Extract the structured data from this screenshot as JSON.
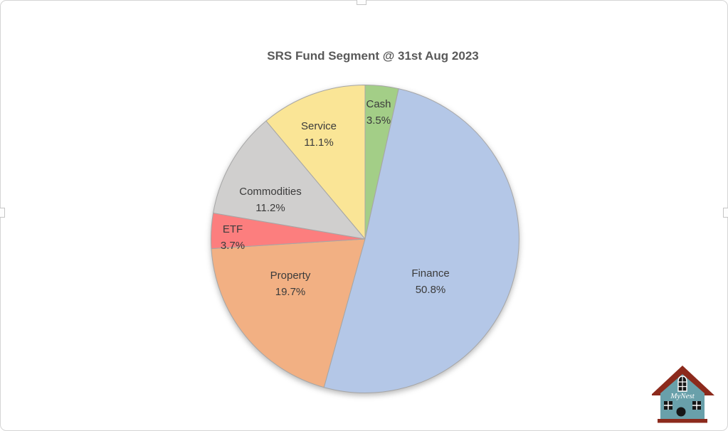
{
  "chart_data": {
    "type": "pie",
    "title": "SRS Fund Segment @ 31st Aug 2023",
    "direction": "clockwise",
    "start_angle_deg": 0,
    "legend": "none",
    "labels_inside": true,
    "stroke_color": "#a6a6a6",
    "slices": [
      {
        "label": "Cash",
        "value_pct": 3.5,
        "display": "3.5%",
        "color": "#a3ce87"
      },
      {
        "label": "Finance",
        "value_pct": 50.8,
        "display": "50.8%",
        "color": "#b4c7e7"
      },
      {
        "label": "Property",
        "value_pct": 19.7,
        "display": "19.7%",
        "color": "#f2b083"
      },
      {
        "label": "ETF",
        "value_pct": 3.7,
        "display": "3.7%",
        "color": "#fc7e7e"
      },
      {
        "label": "Commodities",
        "value_pct": 11.2,
        "display": "11.2%",
        "color": "#d0cfce"
      },
      {
        "label": "Service",
        "value_pct": 11.1,
        "display": "11.1%",
        "color": "#fae596"
      }
    ],
    "title_color": "#595959",
    "label_color": "#3b3b3b"
  },
  "logo": {
    "text": "MyNest",
    "body_color": "#69a0aa",
    "roof_color": "#8c2a1c",
    "accent_black": "#161616",
    "text_color": "#ffffff"
  }
}
